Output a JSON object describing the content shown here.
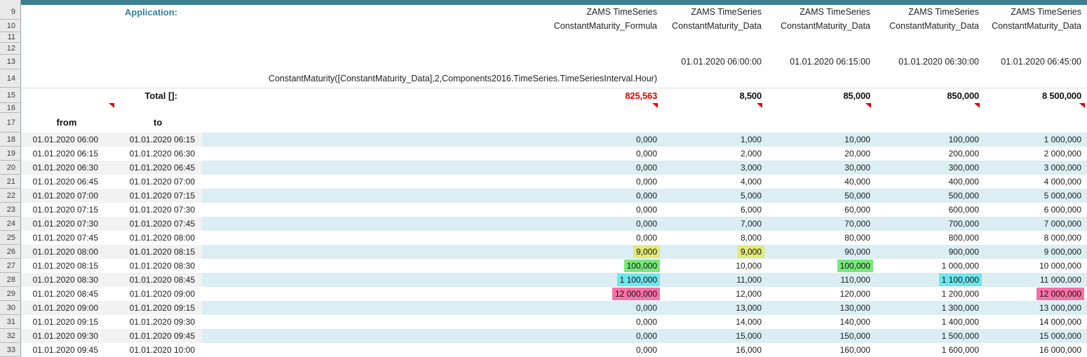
{
  "colors": {
    "topbar": "#3b7f90",
    "accent_teal": "#2e8597",
    "stripe_gray": "#f2f2f2",
    "stripe_cyan": "#daeef3",
    "hl_yellow": "#e3e97a",
    "hl_green": "#79e87b",
    "hl_cyan": "#6fe6ee",
    "hl_pink": "#f871a6",
    "neg_red": "#e60000",
    "gutter_bg": "#e9e9e9",
    "gutter_border": "#b7b7b7"
  },
  "gutter": {
    "rows": [
      "9",
      "10",
      "11",
      "12",
      "13",
      "14",
      "15",
      "16",
      "17",
      "18",
      "19",
      "20",
      "21",
      "22",
      "23",
      "24",
      "25",
      "26",
      "27",
      "28",
      "29",
      "30",
      "31",
      "32",
      "33"
    ]
  },
  "header": {
    "application_label": "Application:",
    "app_name": "ZAMS TimeSeries",
    "col_subtitles": [
      "ConstantMaturity_Formula",
      "ConstantMaturity_Data",
      "ConstantMaturity_Data",
      "ConstantMaturity_Data",
      "ConstantMaturity_Data"
    ],
    "col_dates": [
      "",
      "01.01.2020 06:00:00",
      "01.01.2020 06:15:00",
      "01.01.2020 06:30:00",
      "01.01.2020 06:45:00"
    ],
    "formula": "ConstantMaturity([ConstantMaturity_Data],2,Components2016.TimeSeries.TimeSeriesInterval.Hour)"
  },
  "totals": {
    "label": "Total []:",
    "values": [
      {
        "v": "825,563",
        "s": "red"
      },
      {
        "v": "8,500"
      },
      {
        "v": "85,000"
      },
      {
        "v": "850,000"
      },
      {
        "v": "8 500,000"
      }
    ]
  },
  "table": {
    "col_from": "from",
    "col_to": "to",
    "rows": [
      {
        "n": "18",
        "from": "01.01.2020 06:00",
        "to": "01.01.2020 06:15",
        "cells": [
          {
            "v": "0,000",
            "s": "red"
          },
          {
            "v": "1,000"
          },
          {
            "v": "10,000"
          },
          {
            "v": "100,000"
          },
          {
            "v": "1 000,000"
          }
        ]
      },
      {
        "n": "19",
        "from": "01.01.2020 06:15",
        "to": "01.01.2020 06:30",
        "cells": [
          {
            "v": "0,000",
            "s": "red"
          },
          {
            "v": "2,000"
          },
          {
            "v": "20,000"
          },
          {
            "v": "200,000"
          },
          {
            "v": "2 000,000"
          }
        ]
      },
      {
        "n": "20",
        "from": "01.01.2020 06:30",
        "to": "01.01.2020 06:45",
        "cells": [
          {
            "v": "0,000",
            "s": "red"
          },
          {
            "v": "3,000"
          },
          {
            "v": "30,000"
          },
          {
            "v": "300,000"
          },
          {
            "v": "3 000,000"
          }
        ]
      },
      {
        "n": "21",
        "from": "01.01.2020 06:45",
        "to": "01.01.2020 07:00",
        "cells": [
          {
            "v": "0,000",
            "s": "red"
          },
          {
            "v": "4,000"
          },
          {
            "v": "40,000"
          },
          {
            "v": "400,000"
          },
          {
            "v": "4 000,000"
          }
        ]
      },
      {
        "n": "22",
        "from": "01.01.2020 07:00",
        "to": "01.01.2020 07:15",
        "cells": [
          {
            "v": "0,000",
            "s": "red"
          },
          {
            "v": "5,000"
          },
          {
            "v": "50,000"
          },
          {
            "v": "500,000"
          },
          {
            "v": "5 000,000"
          }
        ]
      },
      {
        "n": "23",
        "from": "01.01.2020 07:15",
        "to": "01.01.2020 07:30",
        "cells": [
          {
            "v": "0,000",
            "s": "red"
          },
          {
            "v": "6,000"
          },
          {
            "v": "60,000"
          },
          {
            "v": "600,000"
          },
          {
            "v": "6 000,000"
          }
        ]
      },
      {
        "n": "24",
        "from": "01.01.2020 07:30",
        "to": "01.01.2020 07:45",
        "cells": [
          {
            "v": "0,000",
            "s": "red"
          },
          {
            "v": "7,000"
          },
          {
            "v": "70,000"
          },
          {
            "v": "700,000"
          },
          {
            "v": "7 000,000"
          }
        ]
      },
      {
        "n": "25",
        "from": "01.01.2020 07:45",
        "to": "01.01.2020 08:00",
        "cells": [
          {
            "v": "0,000",
            "s": "red"
          },
          {
            "v": "8,000"
          },
          {
            "v": "80,000"
          },
          {
            "v": "800,000"
          },
          {
            "v": "8 000,000"
          }
        ]
      },
      {
        "n": "26",
        "from": "01.01.2020 08:00",
        "to": "01.01.2020 08:15",
        "cells": [
          {
            "v": "9,000",
            "s": "yellow"
          },
          {
            "v": "9,000",
            "s": "yellow"
          },
          {
            "v": "90,000"
          },
          {
            "v": "900,000"
          },
          {
            "v": "9 000,000"
          }
        ]
      },
      {
        "n": "27",
        "from": "01.01.2020 08:15",
        "to": "01.01.2020 08:30",
        "cells": [
          {
            "v": "100,000",
            "s": "green"
          },
          {
            "v": "10,000"
          },
          {
            "v": "100,000",
            "s": "green"
          },
          {
            "v": "1 000,000"
          },
          {
            "v": "10 000,000"
          }
        ]
      },
      {
        "n": "28",
        "from": "01.01.2020 08:30",
        "to": "01.01.2020 08:45",
        "cells": [
          {
            "v": "1 100,000",
            "s": "cyan"
          },
          {
            "v": "11,000"
          },
          {
            "v": "110,000"
          },
          {
            "v": "1 100,000",
            "s": "cyan"
          },
          {
            "v": "11 000,000"
          }
        ]
      },
      {
        "n": "29",
        "from": "01.01.2020 08:45",
        "to": "01.01.2020 09:00",
        "cells": [
          {
            "v": "12 000,000",
            "s": "pink"
          },
          {
            "v": "12,000"
          },
          {
            "v": "120,000"
          },
          {
            "v": "1 200,000"
          },
          {
            "v": "12 000,000",
            "s": "pink"
          }
        ]
      },
      {
        "n": "30",
        "from": "01.01.2020 09:00",
        "to": "01.01.2020 09:15",
        "cells": [
          {
            "v": "0,000",
            "s": "red"
          },
          {
            "v": "13,000"
          },
          {
            "v": "130,000"
          },
          {
            "v": "1 300,000"
          },
          {
            "v": "13 000,000"
          }
        ]
      },
      {
        "n": "31",
        "from": "01.01.2020 09:15",
        "to": "01.01.2020 09:30",
        "cells": [
          {
            "v": "0,000",
            "s": "red"
          },
          {
            "v": "14,000"
          },
          {
            "v": "140,000"
          },
          {
            "v": "1 400,000"
          },
          {
            "v": "14 000,000"
          }
        ]
      },
      {
        "n": "32",
        "from": "01.01.2020 09:30",
        "to": "01.01.2020 09:45",
        "cells": [
          {
            "v": "0,000",
            "s": "red"
          },
          {
            "v": "15,000"
          },
          {
            "v": "150,000"
          },
          {
            "v": "1 500,000"
          },
          {
            "v": "15 000,000"
          }
        ]
      },
      {
        "n": "33",
        "from": "01.01.2020 09:45",
        "to": "01.01.2020 10:00",
        "cells": [
          {
            "v": "0,000",
            "s": "red"
          },
          {
            "v": "16,000"
          },
          {
            "v": "160,000"
          },
          {
            "v": "1 600,000"
          },
          {
            "v": "16 000,000"
          }
        ]
      }
    ]
  }
}
